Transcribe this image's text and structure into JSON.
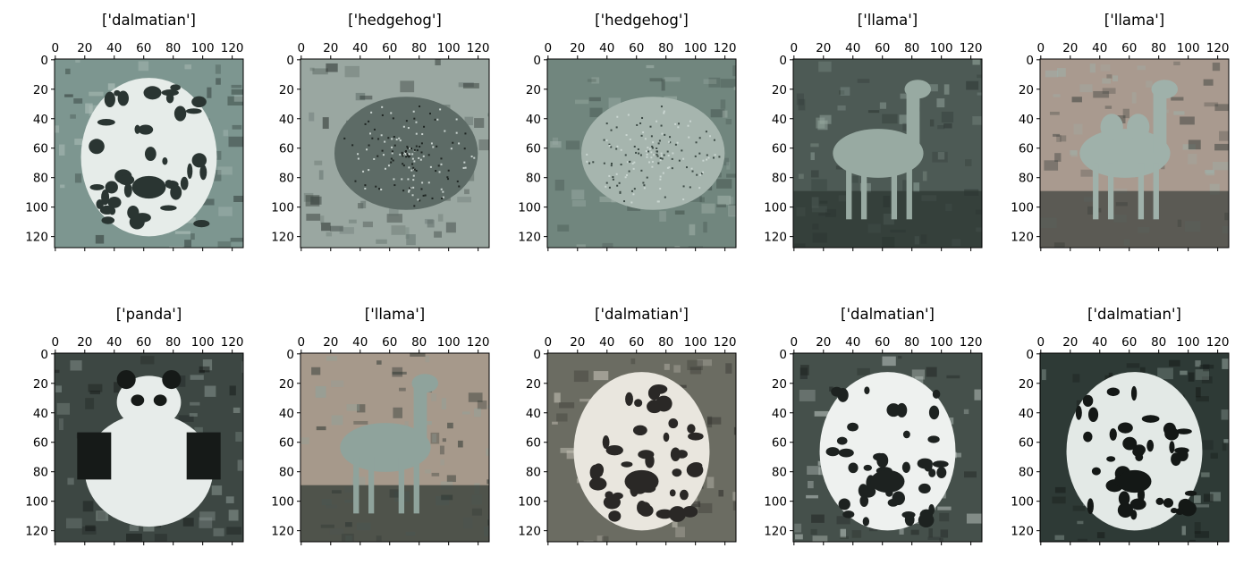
{
  "figure": {
    "axis_ticks": [
      "0",
      "20",
      "40",
      "60",
      "80",
      "100",
      "120"
    ],
    "tick_values": [
      0,
      20,
      40,
      60,
      80,
      100,
      120
    ],
    "image_size": 128,
    "panels": [
      {
        "title": "['dalmatian']",
        "depicts": "dalmatian-photo",
        "colors": {
          "bg": "#7d9690",
          "mid": "#b9c7c2",
          "dark": "#2a3532",
          "light": "#e6ece9"
        }
      },
      {
        "title": "['hedgehog']",
        "depicts": "hedgehog-photo",
        "colors": {
          "bg": "#9aa7a1",
          "mid": "#5d6b66",
          "dark": "#1f2623",
          "light": "#c9d3cf"
        }
      },
      {
        "title": "['hedgehog']",
        "depicts": "hedgehog-photo",
        "colors": {
          "bg": "#71867e",
          "mid": "#a6b5ae",
          "dark": "#3c4a45",
          "light": "#cad6d1"
        }
      },
      {
        "title": "['llama']",
        "depicts": "llama-photo",
        "colors": {
          "bg": "#4d5a55",
          "mid": "#98aaa2",
          "dark": "#2b3431",
          "light": "#bfcdc7"
        }
      },
      {
        "title": "['llama']",
        "depicts": "camel-photo",
        "colors": {
          "bg": "#a99a8f",
          "mid": "#9fb1aa",
          "dark": "#3a3f3b",
          "light": "#c8d4ce"
        }
      },
      {
        "title": "['panda']",
        "depicts": "panda-photo",
        "colors": {
          "bg": "#3d4743",
          "mid": "#8f9c97",
          "dark": "#161a18",
          "light": "#e7ecea"
        }
      },
      {
        "title": "['llama']",
        "depicts": "llama-photo",
        "colors": {
          "bg": "#a6998b",
          "mid": "#8fa39c",
          "dark": "#2b3431",
          "light": "#dedad2"
        }
      },
      {
        "title": "['dalmatian']",
        "depicts": "dalmatian-photo",
        "colors": {
          "bg": "#6b6c62",
          "mid": "#cfcbc0",
          "dark": "#2a2826",
          "light": "#e9e6de"
        }
      },
      {
        "title": "['dalmatian']",
        "depicts": "dalmatian-photo",
        "colors": {
          "bg": "#45504b",
          "mid": "#c6cfcb",
          "dark": "#1d2220",
          "light": "#eef1ef"
        }
      },
      {
        "title": "['dalmatian']",
        "depicts": "dalmatian-photo",
        "colors": {
          "bg": "#2e3a36",
          "mid": "#a9b8b2",
          "dark": "#141816",
          "light": "#e3e9e6"
        }
      }
    ]
  }
}
